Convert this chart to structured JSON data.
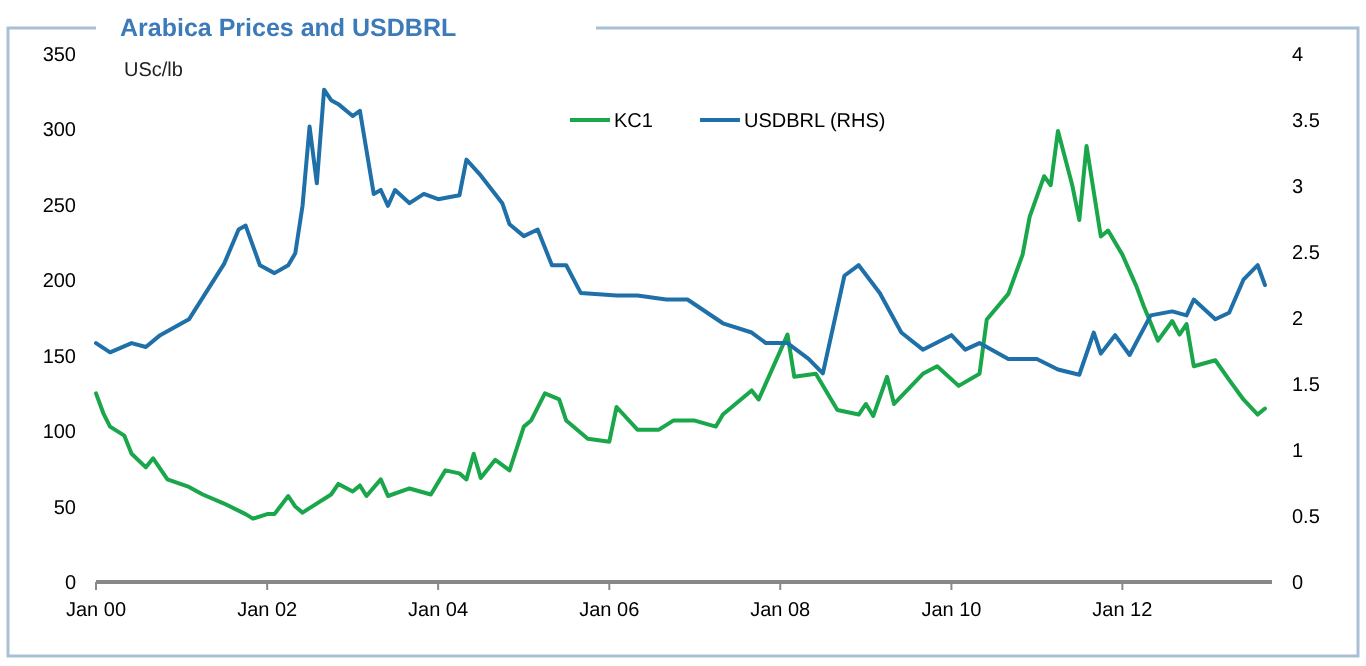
{
  "chart_data": {
    "type": "line",
    "title": "Arabica Prices and USDBRL",
    "ylabel": "USc/lb",
    "legend": "top",
    "grid": false,
    "line_style": "solid",
    "xlim": [
      "2000-01",
      "2013-10"
    ],
    "xticks": [
      {
        "value": "2000-01",
        "label": "Jan 00"
      },
      {
        "value": "2002-01",
        "label": "Jan 02"
      },
      {
        "value": "2004-01",
        "label": "Jan 04"
      },
      {
        "value": "2006-01",
        "label": "Jan 06"
      },
      {
        "value": "2008-01",
        "label": "Jan 08"
      },
      {
        "value": "2010-01",
        "label": "Jan 10"
      },
      {
        "value": "2012-01",
        "label": "Jan 12"
      }
    ],
    "ylim": [
      0,
      350
    ],
    "yticks": [
      0,
      50,
      100,
      150,
      200,
      250,
      300,
      350
    ],
    "y2lim": [
      0,
      4
    ],
    "y2ticks": [
      0,
      0.5,
      1,
      1.5,
      2,
      2.5,
      3,
      3.5,
      4
    ],
    "series": [
      {
        "name": "KC1",
        "color": "#1aa64a",
        "x": [
          "2000-01",
          "2000-02",
          "2000-03",
          "2000-05",
          "2000-06",
          "2000-08",
          "2000-09",
          "2000-11",
          "2001-02",
          "2001-04",
          "2001-07",
          "2001-10",
          "2001-11",
          "2002-01",
          "2002-02",
          "2002-04",
          "2002-05",
          "2002-06",
          "2002-07",
          "2002-10",
          "2002-11",
          "2003-01",
          "2003-02",
          "2003-03",
          "2003-05",
          "2003-06",
          "2003-09",
          "2003-12",
          "2004-02",
          "2004-04",
          "2004-05",
          "2004-06",
          "2004-07",
          "2004-09",
          "2004-11",
          "2005-01",
          "2005-02",
          "2005-04",
          "2005-06",
          "2005-07",
          "2005-10",
          "2006-01",
          "2006-02",
          "2006-05",
          "2006-08",
          "2006-10",
          "2007-01",
          "2007-04",
          "2007-05",
          "2007-09",
          "2007-10",
          "2008-02",
          "2008-03",
          "2008-06",
          "2008-09",
          "2008-12",
          "2009-01",
          "2009-02",
          "2009-04",
          "2009-05",
          "2009-09",
          "2009-11",
          "2010-02",
          "2010-05",
          "2010-06",
          "2010-09",
          "2010-11",
          "2010-12",
          "2011-02",
          "2011-03",
          "2011-04",
          "2011-06",
          "2011-07",
          "2011-08",
          "2011-10",
          "2011-11",
          "2012-01",
          "2012-03",
          "2012-04",
          "2012-06",
          "2012-08",
          "2012-09",
          "2012-10",
          "2012-11",
          "2013-02",
          "2013-04",
          "2013-06",
          "2013-08",
          "2013-09"
        ],
        "values": [
          125,
          112,
          103,
          97,
          85,
          76,
          82,
          68,
          63,
          58,
          52,
          45,
          42,
          45,
          45,
          57,
          50,
          46,
          49,
          58,
          65,
          60,
          64,
          57,
          68,
          57,
          62,
          58,
          74,
          72,
          68,
          85,
          69,
          81,
          74,
          103,
          107,
          125,
          121,
          107,
          95,
          93,
          116,
          101,
          101,
          107,
          107,
          103,
          111,
          127,
          121,
          164,
          136,
          138,
          114,
          111,
          118,
          110,
          136,
          118,
          138,
          143,
          130,
          138,
          174,
          191,
          217,
          242,
          269,
          263,
          299,
          263,
          240,
          289,
          229,
          233,
          217,
          196,
          183,
          160,
          173,
          164,
          171,
          143,
          147,
          134,
          121,
          111,
          115
        ]
      },
      {
        "name": "USDBRL (RHS)",
        "color": "#1f6fa8",
        "axis": "y2",
        "x": [
          "2000-01",
          "2000-03",
          "2000-06",
          "2000-08",
          "2000-10",
          "2001-01",
          "2001-02",
          "2001-07",
          "2001-09",
          "2001-10",
          "2001-12",
          "2002-02",
          "2002-04",
          "2002-05",
          "2002-06",
          "2002-07",
          "2002-08",
          "2002-09",
          "2002-10",
          "2002-11",
          "2003-01",
          "2003-02",
          "2003-04",
          "2003-05",
          "2003-06",
          "2003-07",
          "2003-09",
          "2003-11",
          "2004-01",
          "2004-04",
          "2004-05",
          "2004-07",
          "2004-10",
          "2004-11",
          "2005-01",
          "2005-03",
          "2005-05",
          "2005-07",
          "2005-09",
          "2006-02",
          "2006-05",
          "2006-09",
          "2006-12",
          "2007-05",
          "2007-09",
          "2007-11",
          "2008-02",
          "2008-05",
          "2008-07",
          "2008-10",
          "2008-12",
          "2009-03",
          "2009-06",
          "2009-09",
          "2010-01",
          "2010-03",
          "2010-05",
          "2010-09",
          "2011-01",
          "2011-04",
          "2011-07",
          "2011-09",
          "2011-10",
          "2011-12",
          "2012-02",
          "2012-05",
          "2012-08",
          "2012-10",
          "2012-11",
          "2013-02",
          "2013-04",
          "2013-06",
          "2013-08",
          "2013-09"
        ],
        "values": [
          1.81,
          1.74,
          1.81,
          1.78,
          1.87,
          1.96,
          1.99,
          2.41,
          2.67,
          2.7,
          2.4,
          2.34,
          2.4,
          2.49,
          2.85,
          3.45,
          3.02,
          3.73,
          3.65,
          3.62,
          3.53,
          3.57,
          2.94,
          2.97,
          2.85,
          2.97,
          2.87,
          2.94,
          2.9,
          2.93,
          3.2,
          3.08,
          2.87,
          2.71,
          2.62,
          2.67,
          2.4,
          2.4,
          2.19,
          2.17,
          2.17,
          2.14,
          2.14,
          1.96,
          1.89,
          1.81,
          1.81,
          1.69,
          1.58,
          2.32,
          2.4,
          2.19,
          1.89,
          1.76,
          1.87,
          1.76,
          1.81,
          1.69,
          1.69,
          1.61,
          1.57,
          1.89,
          1.73,
          1.87,
          1.72,
          2.02,
          2.05,
          2.02,
          2.14,
          1.99,
          2.04,
          2.29,
          2.4,
          2.25
        ]
      }
    ]
  }
}
